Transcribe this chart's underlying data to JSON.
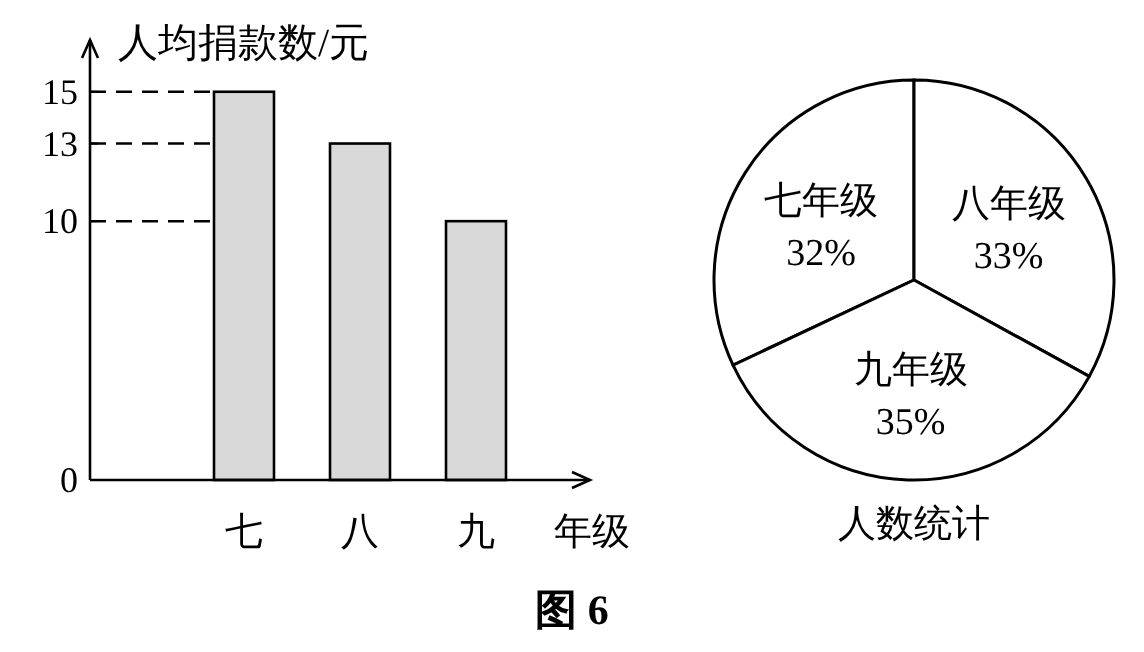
{
  "chart_data": [
    {
      "type": "bar",
      "ylabel": "人均捐款数/元",
      "xlabel": "年级",
      "categories": [
        "七",
        "八",
        "九"
      ],
      "values": [
        15,
        13,
        10
      ],
      "color": "#d9d9d9",
      "ylim": [
        0,
        17
      ],
      "yticks": [
        0,
        10,
        13,
        15
      ],
      "grid": false,
      "ref_lines": [
        {
          "axis": "y",
          "value": 15,
          "line_style": "dashed"
        },
        {
          "axis": "y",
          "value": 13,
          "line_style": "dashed"
        },
        {
          "axis": "y",
          "value": 10,
          "line_style": "dashed"
        }
      ],
      "annotations": [
        "图 6"
      ]
    },
    {
      "type": "pie",
      "xlabel": "人数统计",
      "categories": [
        "七年级",
        "八年级",
        "九年级"
      ],
      "values": [
        32,
        33,
        35
      ],
      "colors": [
        "#ffffff",
        "#ffffff",
        "#ffffff"
      ],
      "value_labels": [
        "32%",
        "33%",
        "35%"
      ]
    }
  ]
}
